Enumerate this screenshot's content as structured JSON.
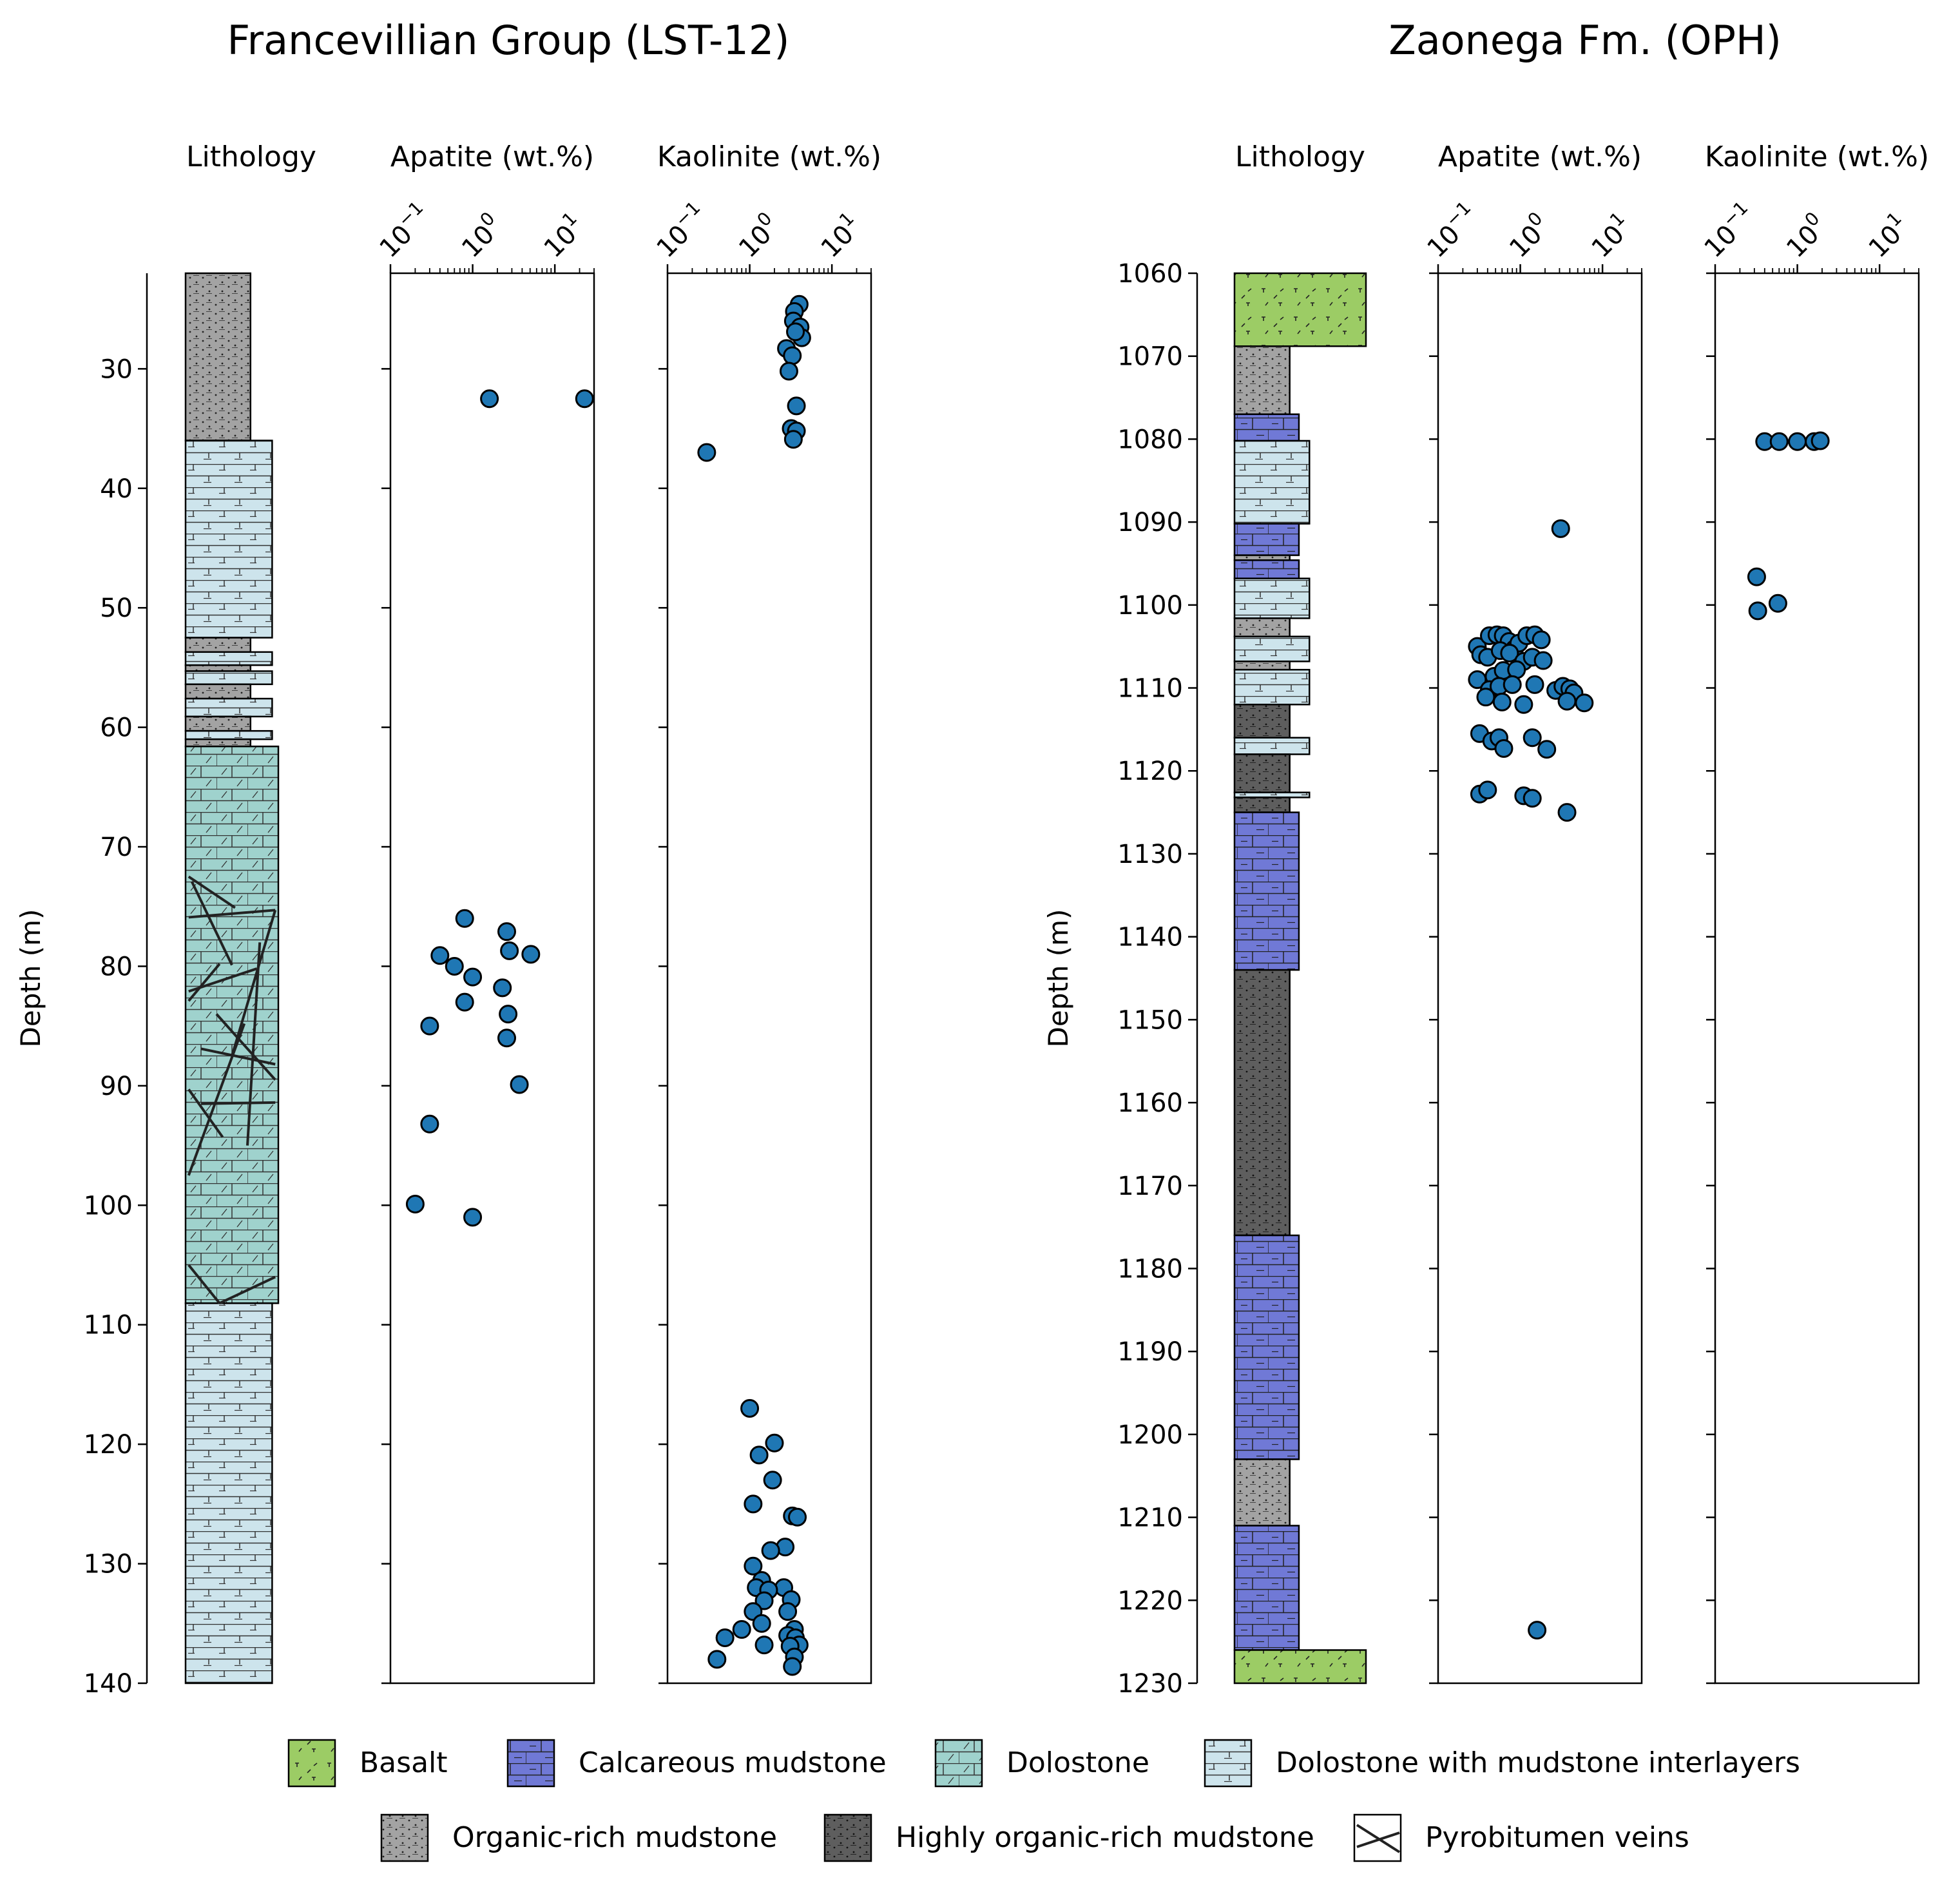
{
  "figure": {
    "left_title": "Francevillian Group (LST-12)",
    "right_title": "Zaonega Fm. (OPH)",
    "ylabel": "Depth (m)",
    "headers": {
      "lithology": "Lithology",
      "apatite": "Apatite (wt.%)",
      "kaolinite": "Kaolinite (wt.%)"
    },
    "xticks": [
      {
        "base": "10",
        "exp": "−1"
      },
      {
        "base": "10",
        "exp": "0"
      },
      {
        "base": "10",
        "exp": "1"
      }
    ]
  },
  "colors": {
    "Basalt": "#9ccc65",
    "Calcareous mudstone": "#7079d6",
    "Dolostone": "#9fd2cd",
    "Dolostone with mudstone interlayers": "#cde4ec",
    "Organic-rich mudstone": "#a3a3a3",
    "Highly organic-rich mudstone": "#5e5e5e",
    "marker": "#1f77b4"
  },
  "legend": [
    {
      "label": "Basalt",
      "key": "Basalt"
    },
    {
      "label": "Calcareous mudstone",
      "key": "Calcareous mudstone"
    },
    {
      "label": "Dolostone",
      "key": "Dolostone"
    },
    {
      "label": "Dolostone with mudstone interlayers",
      "key": "Dolostone with mudstone interlayers"
    },
    {
      "label": "Organic-rich mudstone",
      "key": "Organic-rich mudstone"
    },
    {
      "label": "Highly organic-rich mudstone",
      "key": "Highly organic-rich mudstone"
    },
    {
      "label": "Pyrobitumen veins",
      "key": "veins"
    }
  ],
  "chart_data": [
    {
      "type": "scatter",
      "section": "Francevillian Group (LST-12)",
      "ylabel": "Depth (m)",
      "ylim": [
        140,
        22
      ],
      "yticks": [
        30,
        40,
        50,
        60,
        70,
        80,
        90,
        100,
        110,
        120,
        130,
        140
      ],
      "xscale": "log",
      "xlim": [
        0.1,
        30
      ],
      "lithology": [
        {
          "top": 22,
          "bottom": 36,
          "rock": "Organic-rich mudstone",
          "w": 0.42
        },
        {
          "top": 36,
          "bottom": 52.5,
          "rock": "Dolostone with mudstone interlayers",
          "w": 0.56
        },
        {
          "top": 52.5,
          "bottom": 53.7,
          "rock": "Organic-rich mudstone",
          "w": 0.42
        },
        {
          "top": 53.7,
          "bottom": 54.8,
          "rock": "Dolostone with mudstone interlayers",
          "w": 0.56
        },
        {
          "top": 54.8,
          "bottom": 55.3,
          "rock": "Organic-rich mudstone",
          "w": 0.42
        },
        {
          "top": 55.3,
          "bottom": 56.4,
          "rock": "Dolostone with mudstone interlayers",
          "w": 0.56
        },
        {
          "top": 56.4,
          "bottom": 57.6,
          "rock": "Organic-rich mudstone",
          "w": 0.42
        },
        {
          "top": 57.6,
          "bottom": 59.1,
          "rock": "Dolostone with mudstone interlayers",
          "w": 0.56
        },
        {
          "top": 59.1,
          "bottom": 60.3,
          "rock": "Organic-rich mudstone",
          "w": 0.42
        },
        {
          "top": 60.3,
          "bottom": 61.0,
          "rock": "Dolostone with mudstone interlayers",
          "w": 0.56
        },
        {
          "top": 61.0,
          "bottom": 61.6,
          "rock": "Organic-rich mudstone",
          "w": 0.42
        },
        {
          "top": 61.6,
          "bottom": 108.2,
          "rock": "Dolostone",
          "w": 0.6
        },
        {
          "top": 108.2,
          "bottom": 140,
          "rock": "Dolostone with mudstone interlayers",
          "w": 0.56
        }
      ],
      "veins": [
        [
          [
            0.02,
            72.5
          ],
          [
            0.32,
            75.1
          ]
        ],
        [
          [
            0.02,
            75.9
          ],
          [
            0.58,
            75.3
          ]
        ],
        [
          [
            0.04,
            72.9
          ],
          [
            0.3,
            79.9
          ]
        ],
        [
          [
            0.02,
            82.1
          ],
          [
            0.46,
            80.2
          ]
        ],
        [
          [
            0.58,
            75.3
          ],
          [
            0.3,
            87.5
          ]
        ],
        [
          [
            0.48,
            78.0
          ],
          [
            0.4,
            95.0
          ]
        ],
        [
          [
            0.02,
            82.9
          ],
          [
            0.22,
            79.8
          ]
        ],
        [
          [
            0.02,
            97.5
          ],
          [
            0.38,
            84.8
          ]
        ],
        [
          [
            0.2,
            84.0
          ],
          [
            0.58,
            89.5
          ]
        ],
        [
          [
            0.02,
            90.3
          ],
          [
            0.24,
            94.3
          ]
        ],
        [
          [
            0.1,
            91.5
          ],
          [
            0.58,
            91.4
          ]
        ],
        [
          [
            0.1,
            86.9
          ],
          [
            0.58,
            88.2
          ]
        ],
        [
          [
            0.02,
            105.0
          ],
          [
            0.22,
            108.2
          ]
        ],
        [
          [
            0.22,
            108.2
          ],
          [
            0.58,
            106.0
          ]
        ]
      ],
      "series": [
        {
          "x_variable": "Apatite (wt.%)",
          "points": [
            [
              1.6,
              32.5
            ],
            [
              23,
              32.5
            ],
            [
              0.8,
              76.0
            ],
            [
              2.6,
              77.1
            ],
            [
              2.8,
              78.7
            ],
            [
              5.1,
              79.0
            ],
            [
              0.4,
              79.1
            ],
            [
              0.6,
              80.0
            ],
            [
              1.0,
              80.9
            ],
            [
              2.3,
              81.8
            ],
            [
              0.8,
              83.0
            ],
            [
              2.7,
              84.0
            ],
            [
              0.3,
              85.0
            ],
            [
              2.6,
              86.0
            ],
            [
              3.7,
              89.9
            ],
            [
              0.3,
              93.2
            ],
            [
              0.2,
              99.9
            ],
            [
              1.0,
              101.0
            ]
          ]
        },
        {
          "x_variable": "Kaolinite (wt.%)",
          "points": [
            [
              4.0,
              24.6
            ],
            [
              3.5,
              25.2
            ],
            [
              3.4,
              26.0
            ],
            [
              4.1,
              26.5
            ],
            [
              4.3,
              27.4
            ],
            [
              3.6,
              26.9
            ],
            [
              2.8,
              28.3
            ],
            [
              3.3,
              28.9
            ],
            [
              3.0,
              30.2
            ],
            [
              3.7,
              33.1
            ],
            [
              3.2,
              35.0
            ],
            [
              3.7,
              35.2
            ],
            [
              3.4,
              35.9
            ],
            [
              0.3,
              37.0
            ],
            [
              1.0,
              117.0
            ],
            [
              2.0,
              119.9
            ],
            [
              1.3,
              120.9
            ],
            [
              1.9,
              123.0
            ],
            [
              1.1,
              125.0
            ],
            [
              3.3,
              126.0
            ],
            [
              3.8,
              126.1
            ],
            [
              2.7,
              128.6
            ],
            [
              1.8,
              128.9
            ],
            [
              1.1,
              130.2
            ],
            [
              1.4,
              131.4
            ],
            [
              2.6,
              132.0
            ],
            [
              1.2,
              132.0
            ],
            [
              1.7,
              132.2
            ],
            [
              3.2,
              133.0
            ],
            [
              1.5,
              133.1
            ],
            [
              2.9,
              134.0
            ],
            [
              1.1,
              134.0
            ],
            [
              1.4,
              135.0
            ],
            [
              3.5,
              135.5
            ],
            [
              0.8,
              135.5
            ],
            [
              2.9,
              136.0
            ],
            [
              0.5,
              136.2
            ],
            [
              3.6,
              136.2
            ],
            [
              1.5,
              136.8
            ],
            [
              4.0,
              136.8
            ],
            [
              3.1,
              136.9
            ],
            [
              3.5,
              137.8
            ],
            [
              0.4,
              138.0
            ],
            [
              3.3,
              138.6
            ]
          ]
        }
      ]
    },
    {
      "type": "scatter",
      "section": "Zaonega Fm. (OPH)",
      "ylabel": "Depth (m)",
      "ylim": [
        1230,
        1060
      ],
      "yticks": [
        1060,
        1070,
        1080,
        1090,
        1100,
        1110,
        1120,
        1130,
        1140,
        1150,
        1160,
        1170,
        1180,
        1190,
        1200,
        1210,
        1220,
        1230
      ],
      "xscale": "log",
      "xlim": [
        0.1,
        30
      ],
      "lithology": [
        {
          "top": 1060,
          "bottom": 1068.8,
          "rock": "Basalt",
          "w": 1.0
        },
        {
          "top": 1068.8,
          "bottom": 1077.0,
          "rock": "Organic-rich mudstone",
          "w": 0.42
        },
        {
          "top": 1077.0,
          "bottom": 1080.2,
          "rock": "Calcareous mudstone",
          "w": 0.49
        },
        {
          "top": 1080.2,
          "bottom": 1090.2,
          "rock": "Dolostone with mudstone interlayers",
          "w": 0.57
        },
        {
          "top": 1090.2,
          "bottom": 1094.0,
          "rock": "Calcareous mudstone",
          "w": 0.49
        },
        {
          "top": 1094.0,
          "bottom": 1094.6,
          "rock": "Organic-rich mudstone",
          "w": 0.42
        },
        {
          "top": 1094.6,
          "bottom": 1096.8,
          "rock": "Calcareous mudstone",
          "w": 0.49
        },
        {
          "top": 1096.8,
          "bottom": 1101.6,
          "rock": "Dolostone with mudstone interlayers",
          "w": 0.57
        },
        {
          "top": 1101.6,
          "bottom": 1103.8,
          "rock": "Organic-rich mudstone",
          "w": 0.42
        },
        {
          "top": 1103.8,
          "bottom": 1106.8,
          "rock": "Dolostone with mudstone interlayers",
          "w": 0.57
        },
        {
          "top": 1106.8,
          "bottom": 1107.8,
          "rock": "Organic-rich mudstone",
          "w": 0.42
        },
        {
          "top": 1107.8,
          "bottom": 1112.0,
          "rock": "Dolostone with mudstone interlayers",
          "w": 0.57
        },
        {
          "top": 1112.0,
          "bottom": 1116.0,
          "rock": "Highly organic-rich mudstone",
          "w": 0.42
        },
        {
          "top": 1116.0,
          "bottom": 1118.0,
          "rock": "Dolostone with mudstone interlayers",
          "w": 0.57
        },
        {
          "top": 1118.0,
          "bottom": 1122.6,
          "rock": "Highly organic-rich mudstone",
          "w": 0.42
        },
        {
          "top": 1122.6,
          "bottom": 1123.2,
          "rock": "Dolostone with mudstone interlayers",
          "w": 0.57
        },
        {
          "top": 1123.2,
          "bottom": 1125.0,
          "rock": "Highly organic-rich mudstone",
          "w": 0.42
        },
        {
          "top": 1125.0,
          "bottom": 1144.0,
          "rock": "Calcareous mudstone",
          "w": 0.49
        },
        {
          "top": 1144.0,
          "bottom": 1176.0,
          "rock": "Highly organic-rich mudstone",
          "w": 0.42
        },
        {
          "top": 1176.0,
          "bottom": 1203.0,
          "rock": "Calcareous mudstone",
          "w": 0.49
        },
        {
          "top": 1203.0,
          "bottom": 1211.0,
          "rock": "Organic-rich mudstone",
          "w": 0.42
        },
        {
          "top": 1211.0,
          "bottom": 1226.0,
          "rock": "Calcareous mudstone",
          "w": 0.49
        },
        {
          "top": 1226.0,
          "bottom": 1230,
          "rock": "Basalt",
          "w": 1.0
        }
      ],
      "veins": [],
      "series": [
        {
          "x_variable": "Apatite (wt.%)",
          "points": [
            [
              3.1,
              1090.8
            ],
            [
              0.3,
              1105.0
            ],
            [
              0.33,
              1106.0
            ],
            [
              0.42,
              1103.7
            ],
            [
              0.52,
              1103.6
            ],
            [
              0.62,
              1103.7
            ],
            [
              0.73,
              1104.4
            ],
            [
              0.85,
              1105.3
            ],
            [
              0.96,
              1104.6
            ],
            [
              1.2,
              1103.7
            ],
            [
              1.5,
              1103.6
            ],
            [
              1.8,
              1104.2
            ],
            [
              0.4,
              1106.3
            ],
            [
              0.57,
              1105.5
            ],
            [
              0.74,
              1105.8
            ],
            [
              1.1,
              1106.8
            ],
            [
              1.4,
              1106.3
            ],
            [
              1.9,
              1106.7
            ],
            [
              0.48,
              1108.6
            ],
            [
              0.62,
              1107.9
            ],
            [
              0.9,
              1107.8
            ],
            [
              0.3,
              1109.0
            ],
            [
              0.42,
              1110.2
            ],
            [
              0.55,
              1109.8
            ],
            [
              0.8,
              1109.6
            ],
            [
              1.5,
              1109.6
            ],
            [
              2.7,
              1110.3
            ],
            [
              3.3,
              1109.8
            ],
            [
              4.0,
              1110.1
            ],
            [
              4.5,
              1110.6
            ],
            [
              0.38,
              1111.1
            ],
            [
              0.6,
              1111.7
            ],
            [
              1.1,
              1112.0
            ],
            [
              3.7,
              1111.6
            ],
            [
              6.0,
              1111.8
            ],
            [
              0.32,
              1115.5
            ],
            [
              0.45,
              1116.4
            ],
            [
              0.55,
              1116.0
            ],
            [
              0.63,
              1117.3
            ],
            [
              1.4,
              1116.0
            ],
            [
              2.1,
              1117.4
            ],
            [
              0.32,
              1122.8
            ],
            [
              0.4,
              1122.3
            ],
            [
              1.1,
              1123.0
            ],
            [
              1.4,
              1123.3
            ],
            [
              3.7,
              1125.0
            ],
            [
              1.6,
              1223.6
            ]
          ]
        },
        {
          "x_variable": "Kaolinite (wt.%)",
          "points": [
            [
              0.4,
              1080.3
            ],
            [
              0.6,
              1080.3
            ],
            [
              1.0,
              1080.3
            ],
            [
              1.6,
              1080.3
            ],
            [
              1.9,
              1080.2
            ],
            [
              0.32,
              1096.6
            ],
            [
              0.33,
              1100.7
            ],
            [
              0.58,
              1099.8
            ]
          ]
        }
      ]
    }
  ]
}
